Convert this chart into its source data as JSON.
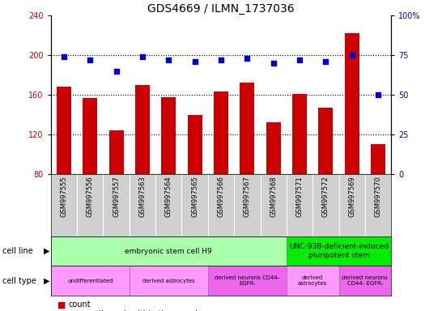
{
  "title": "GDS4669 / ILMN_1737036",
  "samples": [
    "GSM997555",
    "GSM997556",
    "GSM997557",
    "GSM997563",
    "GSM997564",
    "GSM997565",
    "GSM997566",
    "GSM997567",
    "GSM997568",
    "GSM997571",
    "GSM997572",
    "GSM997569",
    "GSM997570"
  ],
  "counts": [
    168,
    157,
    124,
    170,
    158,
    140,
    163,
    172,
    132,
    161,
    147,
    222,
    110
  ],
  "percentiles": [
    74,
    72,
    65,
    74,
    72,
    71,
    72,
    73,
    70,
    72,
    71,
    75,
    50
  ],
  "ylim_left": [
    80,
    240
  ],
  "ylim_right": [
    0,
    100
  ],
  "yticks_left": [
    80,
    120,
    160,
    200,
    240
  ],
  "yticks_right": [
    0,
    25,
    50,
    75,
    100
  ],
  "bar_color": "#cc0000",
  "dot_color": "#0000cc",
  "bar_bottom": 80,
  "cell_line_groups": [
    {
      "label": "embryonic stem cell H9",
      "start": 0,
      "end": 9,
      "color": "#aaffaa"
    },
    {
      "label": "UNC-93B-deficient-induced\npluripotent stem",
      "start": 9,
      "end": 13,
      "color": "#00ee00"
    }
  ],
  "cell_type_groups": [
    {
      "label": "undifferentiated",
      "start": 0,
      "end": 3,
      "color": "#ff99ff"
    },
    {
      "label": "derived astrocytes",
      "start": 3,
      "end": 6,
      "color": "#ff99ff"
    },
    {
      "label": "derived neurons CD44-\nEGFR-",
      "start": 6,
      "end": 9,
      "color": "#ee66ee"
    },
    {
      "label": "derived\nastrocytes",
      "start": 9,
      "end": 11,
      "color": "#ff99ff"
    },
    {
      "label": "derived neurons\nCD44- EGFR-",
      "start": 11,
      "end": 13,
      "color": "#ee66ee"
    }
  ],
  "legend_count_color": "#cc0000",
  "legend_dot_color": "#0000cc",
  "background_color": "#ffffff",
  "gridline_color": "#000000",
  "sample_bg_color": "#d0d0d0",
  "row_label_fontsize": 7,
  "tick_fontsize": 7,
  "title_fontsize": 10,
  "bar_fontsize": 6,
  "annotation_fontsize": 6.5,
  "legend_fontsize": 7
}
